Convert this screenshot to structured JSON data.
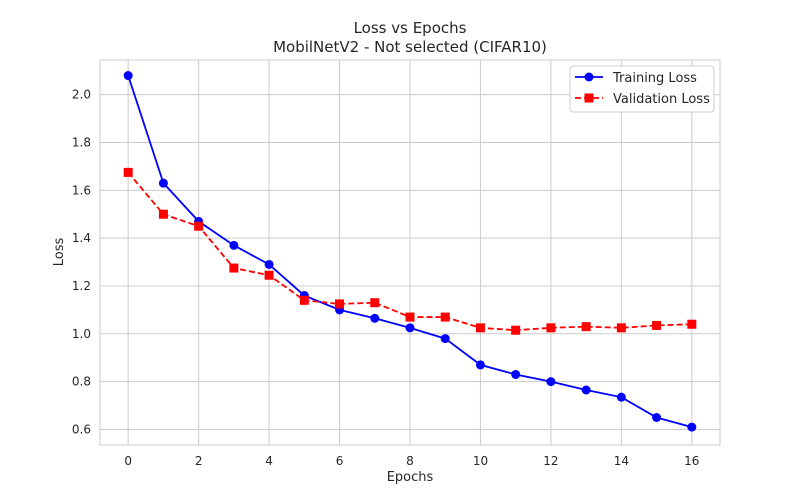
{
  "chart_data": {
    "type": "line",
    "title": "Loss vs Epochs",
    "subtitle": "MobilNetV2 - Not selected (CIFAR10)",
    "xlabel": "Epochs",
    "ylabel": "Loss",
    "xlim": [
      -0.8,
      16.8
    ],
    "ylim": [
      0.535,
      2.145
    ],
    "xticks": [
      0,
      2,
      4,
      6,
      8,
      10,
      12,
      14,
      16
    ],
    "yticks": [
      0.6,
      0.8,
      1.0,
      1.2,
      1.4,
      1.6,
      1.8,
      2.0
    ],
    "ytick_labels": [
      "0.6",
      "0.8",
      "1.0",
      "1.2",
      "1.4",
      "1.6",
      "1.8",
      "2.0"
    ],
    "grid": true,
    "legend_position": "top-right",
    "x": [
      0,
      1,
      2,
      3,
      4,
      5,
      6,
      7,
      8,
      9,
      10,
      11,
      12,
      13,
      14,
      15,
      16
    ],
    "series": [
      {
        "name": "Training Loss",
        "color": "#0000ff",
        "line_style": "solid",
        "marker": "circle",
        "values": [
          2.08,
          1.63,
          1.47,
          1.37,
          1.29,
          1.16,
          1.1,
          1.065,
          1.025,
          0.98,
          0.87,
          0.83,
          0.8,
          0.765,
          0.735,
          0.65,
          0.61
        ]
      },
      {
        "name": "Validation Loss",
        "color": "#ff0000",
        "line_style": "dashed",
        "marker": "square",
        "values": [
          1.675,
          1.5,
          1.45,
          1.275,
          1.245,
          1.14,
          1.125,
          1.13,
          1.07,
          1.07,
          1.025,
          1.015,
          1.025,
          1.03,
          1.025,
          1.035,
          1.04
        ]
      }
    ]
  }
}
